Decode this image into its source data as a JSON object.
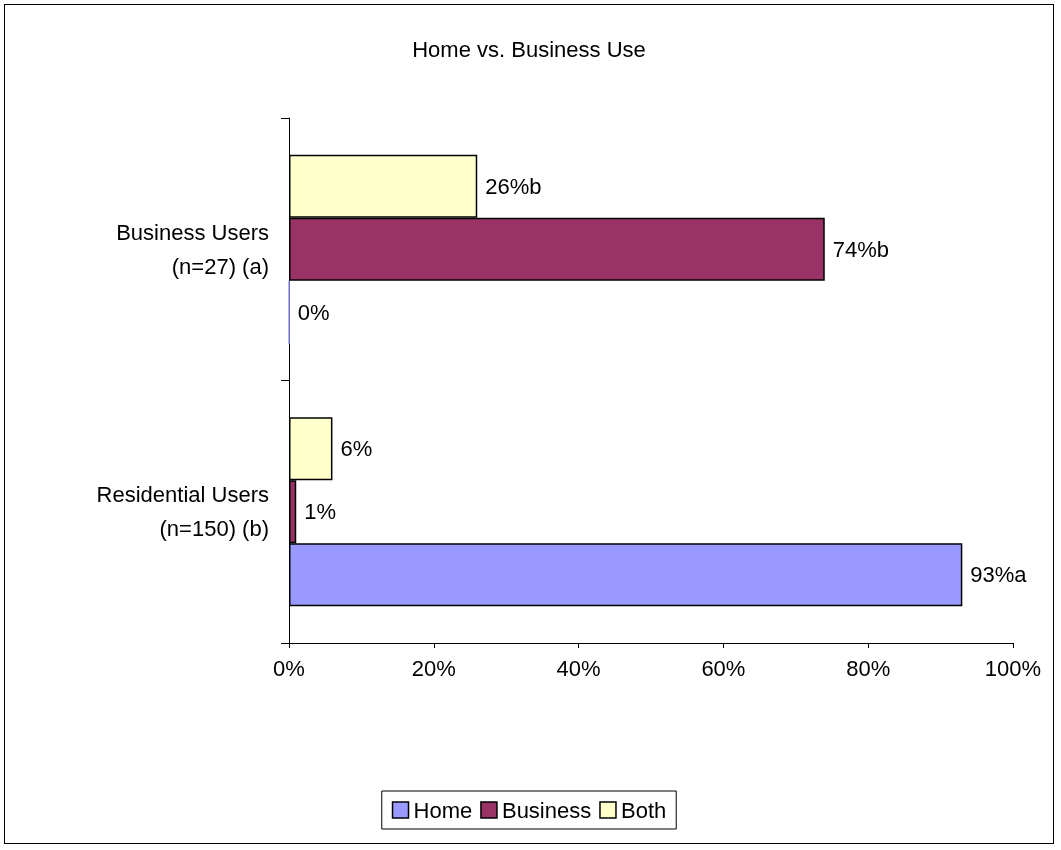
{
  "chart_data": {
    "type": "bar",
    "title": "Home vs. Business Use",
    "orientation": "horizontal",
    "categories": [
      "Business Users\n(n=27) (a)",
      "Residential Users\n(n=150) (b)"
    ],
    "series": [
      {
        "name": "Home",
        "color": "#9999ff",
        "values": [
          0,
          93
        ],
        "value_labels": [
          "0%",
          "93%a"
        ]
      },
      {
        "name": "Business",
        "color": "#993366",
        "values": [
          74,
          1
        ],
        "value_labels": [
          "74%b",
          "1%"
        ]
      },
      {
        "name": "Both",
        "color": "#ffffcc",
        "values": [
          26,
          6
        ],
        "value_labels": [
          "26%b",
          "6%"
        ]
      }
    ],
    "xlim": [
      0,
      100
    ],
    "xticks": [
      {
        "value": 0,
        "label": "0%"
      },
      {
        "value": 20,
        "label": "20%"
      },
      {
        "value": 40,
        "label": "40%"
      },
      {
        "value": 60,
        "label": "60%"
      },
      {
        "value": 80,
        "label": "80%"
      },
      {
        "value": 100,
        "label": "100%"
      }
    ],
    "grid": false,
    "legend": "bottom"
  }
}
